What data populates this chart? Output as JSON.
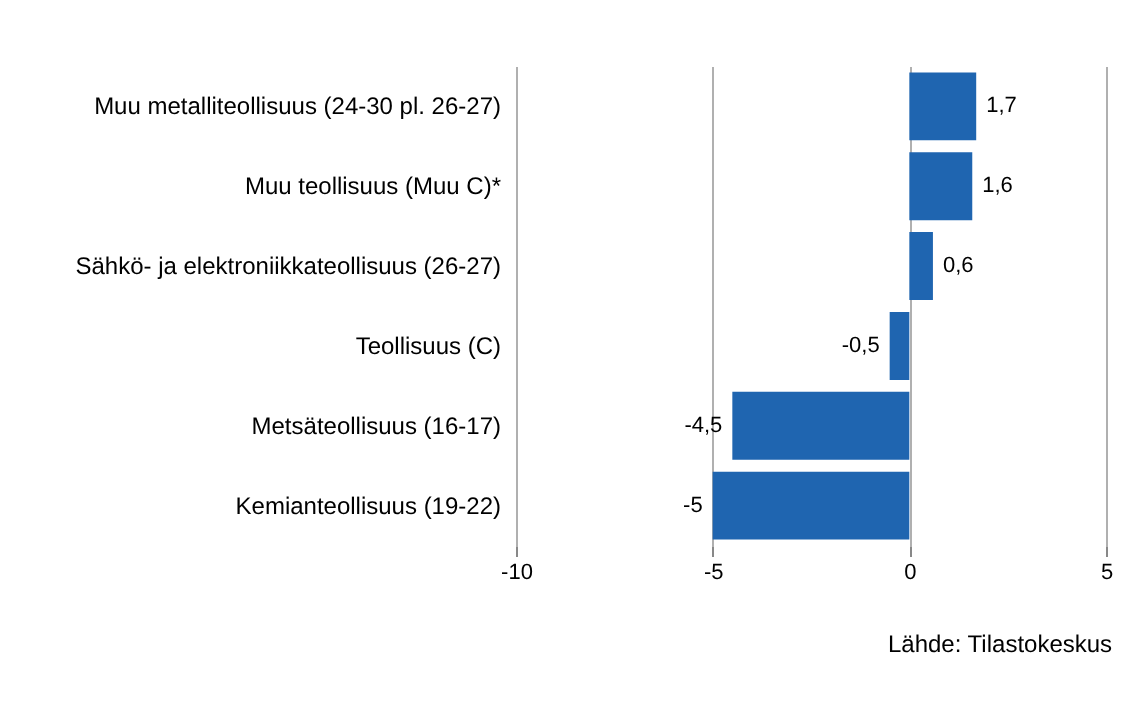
{
  "chart_data": {
    "type": "bar",
    "orientation": "horizontal",
    "categories": [
      "Muu metalliteollisuus (24-30  pl. 26-27)",
      "Muu teollisuus (Muu C)*",
      "Sähkö- ja elektroniikkateollisuus (26-27)",
      "Teollisuus (C)",
      "Metsäteollisuus (16-17)",
      "Kemianteollisuus (19-22)"
    ],
    "values": [
      1.7,
      1.6,
      0.6,
      -0.5,
      -4.5,
      -5
    ],
    "value_labels": [
      "1,7",
      "1,6",
      "0,6",
      "-0,5",
      "-4,5",
      "-5"
    ],
    "color": "#1f65b0",
    "xlim": [
      -10,
      5
    ],
    "xticks": [
      -10,
      -5,
      0,
      5
    ],
    "grid": "x",
    "annotations": [
      "Lähde: Tilastokeskus"
    ]
  }
}
